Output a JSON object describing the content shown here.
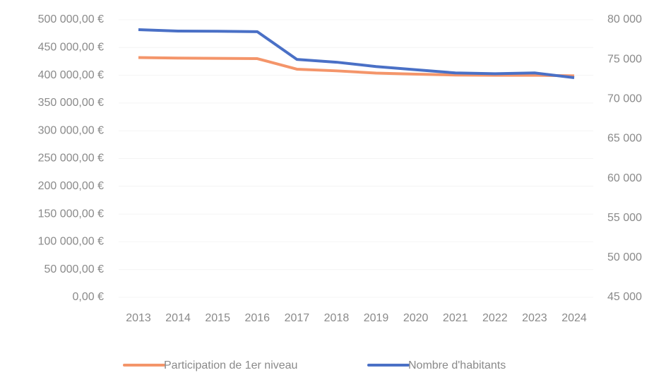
{
  "chart_data": {
    "type": "line",
    "categories": [
      "2013",
      "2014",
      "2015",
      "2016",
      "2017",
      "2018",
      "2019",
      "2020",
      "2021",
      "2022",
      "2023",
      "2024"
    ],
    "series": [
      {
        "name": "Participation de 1er niveau",
        "color": "#f4956a",
        "values": [
          432000,
          431000,
          430500,
          430000,
          411000,
          408000,
          404000,
          402000,
          400500,
          400000,
          400000,
          399000
        ]
      },
      {
        "name": "Nombre d'habitants",
        "color": "#4a70c6",
        "axis": "y2",
        "values": [
          78750,
          78580,
          78550,
          78500,
          75000,
          74650,
          74100,
          73700,
          73300,
          73200,
          73300,
          72700
        ]
      }
    ],
    "ylim": [
      0,
      500000
    ],
    "yticks": [
      {
        "value": 0,
        "label": "0,00 €"
      },
      {
        "value": 50000,
        "label": "50 000,00 €"
      },
      {
        "value": 100000,
        "label": "100 000,00 €"
      },
      {
        "value": 150000,
        "label": "150 000,00 €"
      },
      {
        "value": 200000,
        "label": "200 000,00 €"
      },
      {
        "value": 250000,
        "label": "250 000,00 €"
      },
      {
        "value": 300000,
        "label": "300 000,00 €"
      },
      {
        "value": 350000,
        "label": "350 000,00 €"
      },
      {
        "value": 400000,
        "label": "400 000,00 €"
      },
      {
        "value": 450000,
        "label": "450 000,00 €"
      },
      {
        "value": 500000,
        "label": "500 000,00 €"
      }
    ],
    "y2lim": [
      45000,
      80000
    ],
    "y2ticks": [
      {
        "value": 45000,
        "label": "45 000"
      },
      {
        "value": 50000,
        "label": "50 000"
      },
      {
        "value": 55000,
        "label": "55 000"
      },
      {
        "value": 60000,
        "label": "60 000"
      },
      {
        "value": 65000,
        "label": "65 000"
      },
      {
        "value": 70000,
        "label": "70 000"
      },
      {
        "value": 75000,
        "label": "75 000"
      },
      {
        "value": 80000,
        "label": "80 000"
      }
    ],
    "legend": "bottom"
  }
}
